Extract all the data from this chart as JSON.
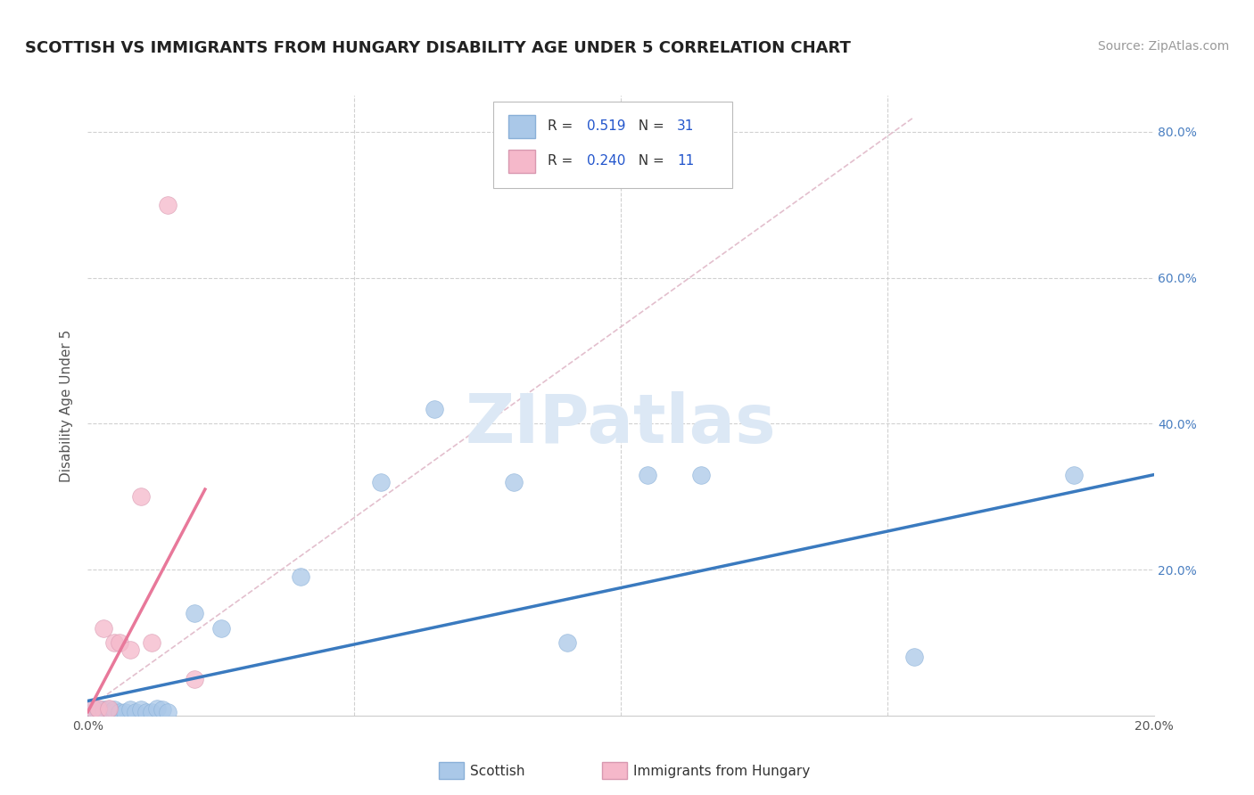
{
  "title": "SCOTTISH VS IMMIGRANTS FROM HUNGARY DISABILITY AGE UNDER 5 CORRELATION CHART",
  "source": "Source: ZipAtlas.com",
  "ylabel": "Disability Age Under 5",
  "xlim": [
    0.0,
    0.2
  ],
  "ylim": [
    0.0,
    0.85
  ],
  "scottish_x": [
    0.001,
    0.001,
    0.002,
    0.002,
    0.003,
    0.003,
    0.004,
    0.004,
    0.005,
    0.005,
    0.006,
    0.007,
    0.008,
    0.009,
    0.01,
    0.011,
    0.012,
    0.013,
    0.014,
    0.015,
    0.02,
    0.025,
    0.04,
    0.055,
    0.065,
    0.08,
    0.09,
    0.105,
    0.115,
    0.155,
    0.185
  ],
  "scottish_y": [
    0.005,
    0.01,
    0.005,
    0.008,
    0.005,
    0.008,
    0.005,
    0.008,
    0.005,
    0.008,
    0.005,
    0.005,
    0.008,
    0.005,
    0.008,
    0.005,
    0.005,
    0.01,
    0.008,
    0.005,
    0.14,
    0.12,
    0.19,
    0.32,
    0.42,
    0.32,
    0.1,
    0.33,
    0.33,
    0.08,
    0.33
  ],
  "hungary_x": [
    0.001,
    0.002,
    0.003,
    0.004,
    0.005,
    0.006,
    0.008,
    0.01,
    0.012,
    0.015,
    0.02
  ],
  "hungary_y": [
    0.01,
    0.01,
    0.12,
    0.01,
    0.1,
    0.1,
    0.09,
    0.3,
    0.1,
    0.7,
    0.05
  ],
  "R_scottish": 0.519,
  "N_scottish": 31,
  "R_hungary": 0.24,
  "N_hungary": 11,
  "scottish_color": "#aac8e8",
  "hungary_color": "#f5b8ca",
  "scottish_line_color": "#3a7abf",
  "hungary_line_color": "#e8789a",
  "diagonal_color": "#e0b8c8",
  "background_color": "#ffffff",
  "grid_color": "#cccccc",
  "watermark": "ZIPatlas",
  "watermark_color": "#dce8f5"
}
